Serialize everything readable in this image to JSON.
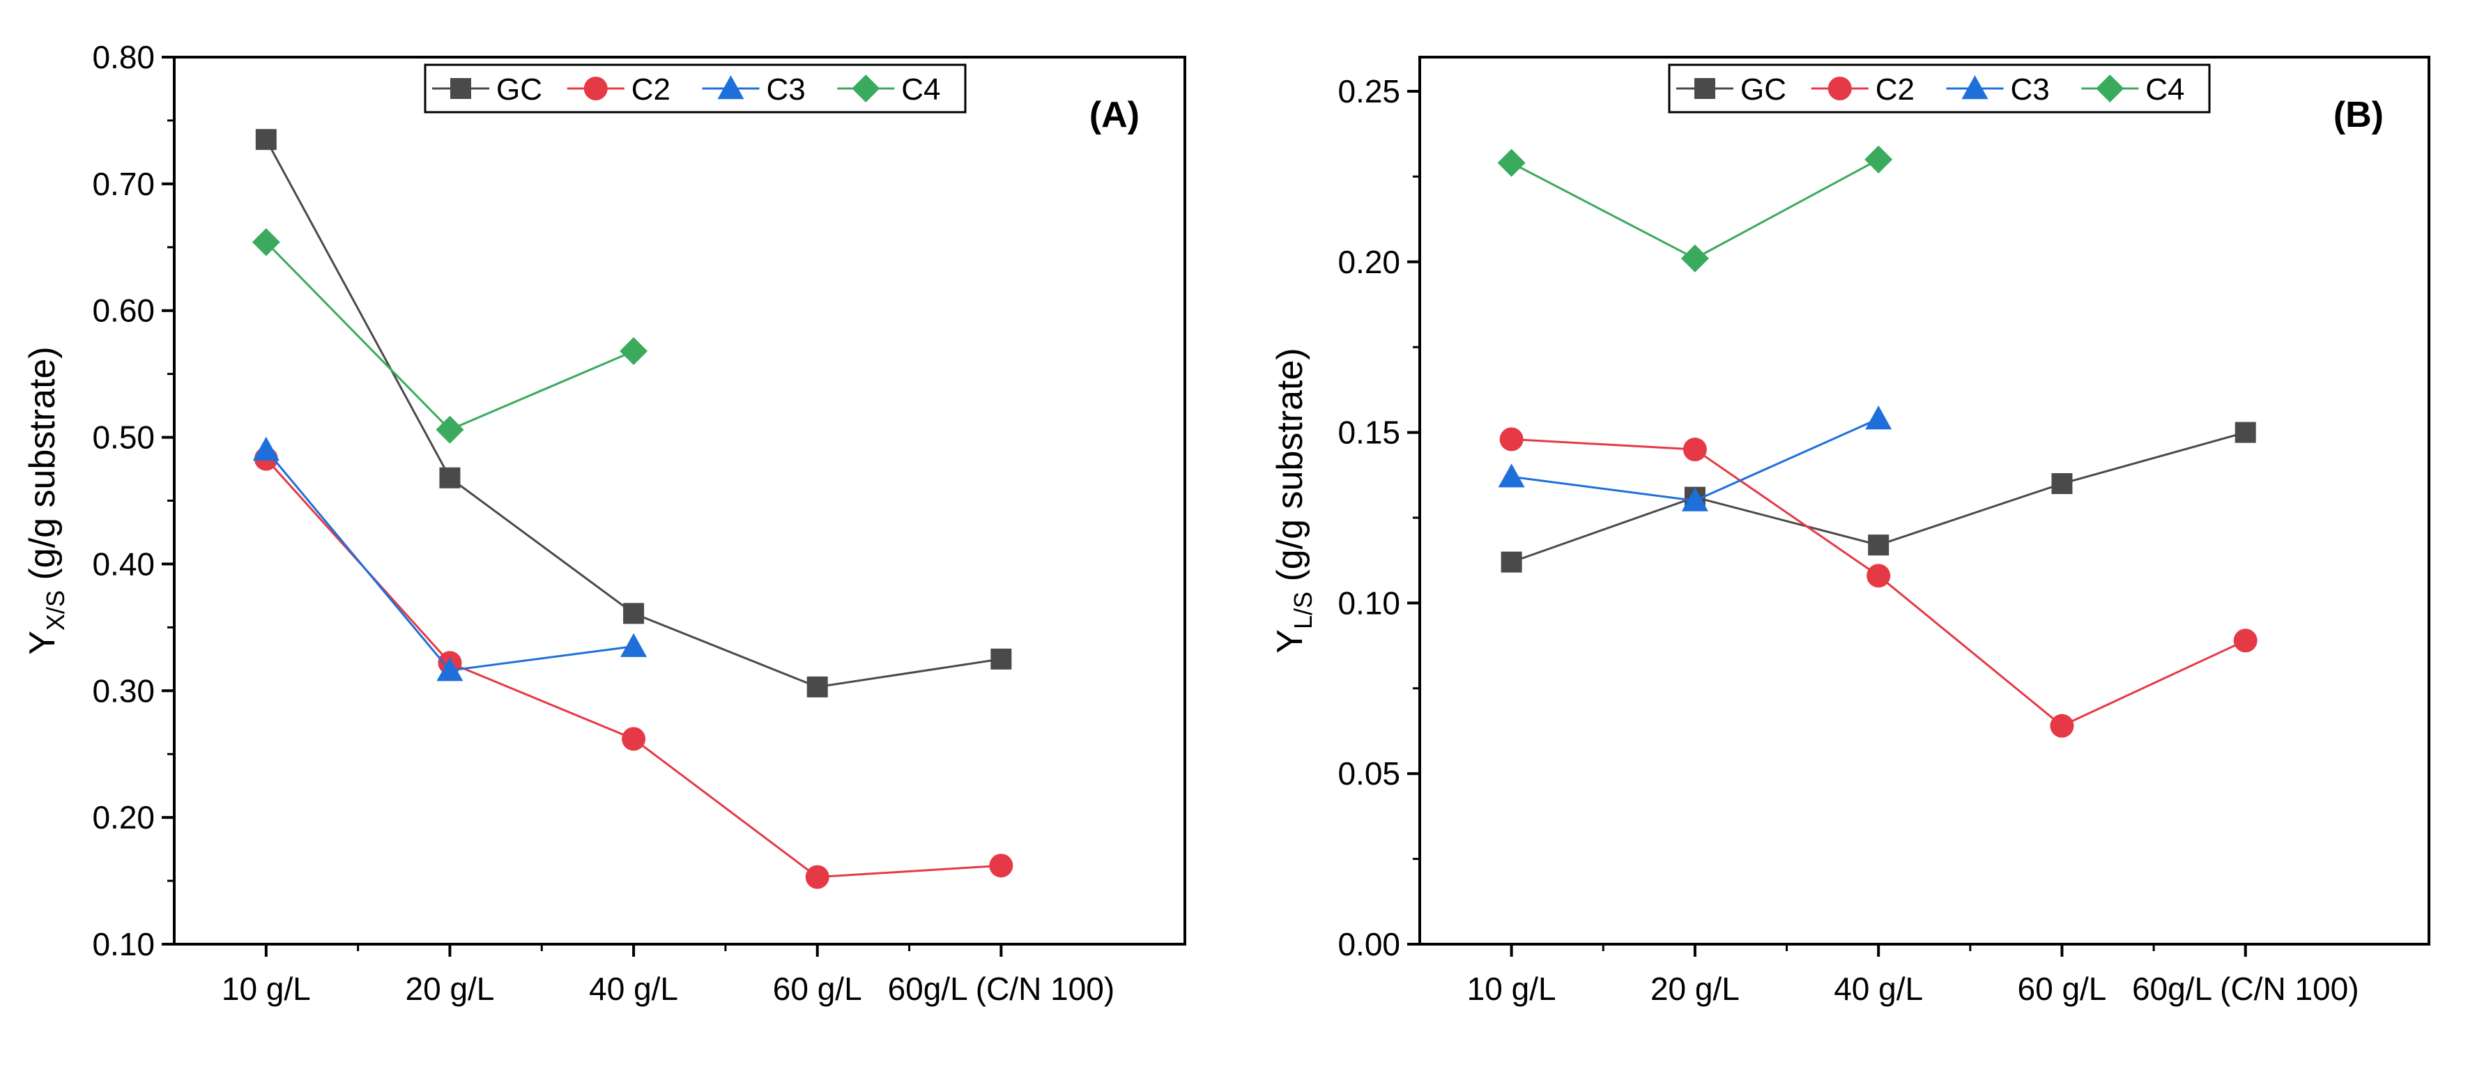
{
  "colors": {
    "GC": "#4a4a4a",
    "C2": "#e63946",
    "C3": "#1f6fdb",
    "C4": "#3aaa5c",
    "axis": "#000000"
  },
  "chart_data": [
    {
      "type": "line",
      "panel_label": "(A)",
      "title": "",
      "xlabel": "",
      "ylabel_main": "Y",
      "ylabel_sub": "X/S",
      "ylabel_rest": " (g/g substrate)",
      "categories": [
        "10 g/L",
        "20 g/L",
        "40 g/L",
        "60 g/L",
        "60g/L (C/N 100)"
      ],
      "ylim": [
        0.1,
        0.8
      ],
      "yticks": [
        0.1,
        0.2,
        0.3,
        0.4,
        0.5,
        0.6,
        0.7,
        0.8
      ],
      "ytick_labels": [
        "0.10",
        "0.20",
        "0.30",
        "0.40",
        "0.50",
        "0.60",
        "0.70",
        "0.80"
      ],
      "legend_position": "top-center",
      "series": [
        {
          "name": "GC",
          "marker": "square",
          "values": [
            0.735,
            0.468,
            0.361,
            0.303,
            0.325
          ]
        },
        {
          "name": "C2",
          "marker": "circle",
          "values": [
            0.483,
            0.322,
            0.262,
            0.153,
            0.162
          ]
        },
        {
          "name": "C3",
          "marker": "triangle",
          "values": [
            0.49,
            0.316,
            0.335,
            null,
            null
          ]
        },
        {
          "name": "C4",
          "marker": "diamond",
          "values": [
            0.654,
            0.506,
            0.568,
            null,
            null
          ]
        }
      ]
    },
    {
      "type": "line",
      "panel_label": "(B)",
      "title": "",
      "xlabel": "",
      "ylabel_main": "Y",
      "ylabel_sub": "L/S",
      "ylabel_rest": " (g/g substrate)",
      "categories": [
        "10 g/L",
        "20 g/L",
        "40 g/L",
        "60 g/L",
        "60g/L (C/N 100)"
      ],
      "ylim": [
        0.0,
        0.26
      ],
      "yticks": [
        0.0,
        0.05,
        0.1,
        0.15,
        0.2,
        0.25
      ],
      "ytick_labels": [
        "0.00",
        "0.05",
        "0.10",
        "0.15",
        "0.20",
        "0.25"
      ],
      "legend_position": "top-center",
      "series": [
        {
          "name": "GC",
          "marker": "square",
          "values": [
            0.112,
            0.131,
            0.117,
            0.135,
            0.15
          ]
        },
        {
          "name": "C2",
          "marker": "circle",
          "values": [
            0.148,
            0.145,
            0.108,
            0.064,
            0.089
          ]
        },
        {
          "name": "C3",
          "marker": "triangle",
          "values": [
            0.137,
            0.13,
            0.154,
            null,
            null
          ]
        },
        {
          "name": "C4",
          "marker": "diamond",
          "values": [
            0.229,
            0.201,
            0.23,
            null,
            null
          ]
        }
      ]
    }
  ]
}
